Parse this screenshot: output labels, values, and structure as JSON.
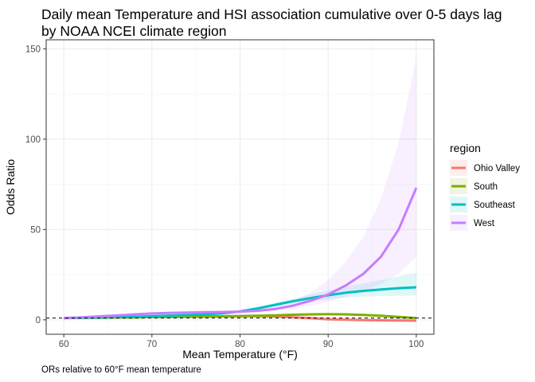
{
  "chart_data": {
    "type": "line",
    "title": "Daily mean Temperature and HSI association cumulative over 0-5 days lag by NOAA NCEI climate region",
    "xlabel": "Mean Temperature (°F)",
    "ylabel": "Odds Ratio",
    "caption": "ORs relative to 60°F mean temperature",
    "xlim": [
      58,
      102
    ],
    "ylim": [
      -8,
      155
    ],
    "x_ticks": [
      60,
      70,
      80,
      90,
      100
    ],
    "y_ticks": [
      0,
      50,
      100,
      150
    ],
    "reference_line": 1,
    "grid": true,
    "legend": {
      "title": "region",
      "position": "right"
    },
    "x": [
      60,
      62,
      64,
      66,
      68,
      70,
      72,
      74,
      76,
      78,
      80,
      82,
      84,
      86,
      88,
      90,
      92,
      94,
      96,
      98,
      100
    ],
    "series": [
      {
        "name": "Ohio Valley",
        "color": "#F8766D",
        "values": [
          1,
          1.1,
          1.2,
          1.3,
          1.4,
          1.5,
          1.6,
          1.7,
          1.8,
          1.9,
          2.0,
          2.0,
          1.8,
          1.4,
          0.9,
          0.3,
          0.0,
          -0.2,
          -0.3,
          -0.4,
          -0.5
        ],
        "lower": [
          1,
          1,
          1,
          1,
          1,
          1,
          1,
          1,
          1,
          1,
          1,
          1,
          1,
          1,
          0.8,
          0.3,
          0.0,
          -0.2,
          -0.3,
          -0.4,
          -0.5
        ],
        "upper": [
          1,
          1.2,
          1.4,
          1.6,
          1.8,
          2.0,
          2.2,
          2.4,
          2.6,
          2.8,
          3.0,
          3.0,
          2.8,
          2.5,
          2.0,
          1.5,
          1.2,
          1.0,
          0.9,
          0.8,
          0.8
        ]
      },
      {
        "name": "South",
        "color": "#7CAE00",
        "values": [
          1,
          1.1,
          1.2,
          1.3,
          1.4,
          1.5,
          1.6,
          1.7,
          1.8,
          1.9,
          2.0,
          2.2,
          2.5,
          2.8,
          3.0,
          3.1,
          3.0,
          2.7,
          2.2,
          1.6,
          1.0
        ],
        "lower": [
          1,
          1,
          1,
          1.1,
          1.2,
          1.3,
          1.4,
          1.5,
          1.6,
          1.7,
          1.8,
          2.0,
          2.2,
          2.4,
          2.5,
          2.5,
          2.3,
          2.0,
          1.6,
          1.1,
          0.6
        ],
        "upper": [
          1,
          1.2,
          1.4,
          1.5,
          1.6,
          1.7,
          1.8,
          1.9,
          2.0,
          2.1,
          2.2,
          2.4,
          2.8,
          3.2,
          3.5,
          3.7,
          3.7,
          3.4,
          2.9,
          2.2,
          1.5
        ]
      },
      {
        "name": "Southeast",
        "color": "#00BFC4",
        "values": [
          1,
          1.1,
          1.3,
          1.5,
          1.7,
          2.0,
          2.3,
          2.6,
          3.0,
          3.6,
          4.6,
          6.3,
          8.3,
          10.3,
          12.0,
          13.6,
          15.0,
          16.0,
          16.8,
          17.5,
          18.0
        ],
        "lower": [
          1,
          1,
          1.1,
          1.3,
          1.5,
          1.8,
          2.1,
          2.4,
          2.8,
          3.3,
          4.2,
          5.6,
          7.3,
          9.0,
          10.3,
          11.4,
          12.3,
          12.8,
          13.1,
          13.3,
          13.5
        ],
        "upper": [
          1,
          1.2,
          1.5,
          1.7,
          1.9,
          2.2,
          2.5,
          2.8,
          3.3,
          4.0,
          5.1,
          7.0,
          9.4,
          11.8,
          14.0,
          16.2,
          18.3,
          20.2,
          22.0,
          24.0,
          26.0
        ]
      },
      {
        "name": "West",
        "color": "#C77CFF",
        "values": [
          1,
          1.4,
          1.9,
          2.4,
          3.0,
          3.5,
          3.8,
          4.0,
          4.2,
          4.3,
          4.5,
          5.0,
          6.0,
          7.8,
          10.5,
          14.0,
          19.0,
          25.5,
          35.0,
          50.0,
          73.0
        ],
        "lower": [
          1,
          1.2,
          1.6,
          2.0,
          2.5,
          2.9,
          3.2,
          3.4,
          3.6,
          3.7,
          3.8,
          4.1,
          4.8,
          6.0,
          7.8,
          9.9,
          12.7,
          16.0,
          20.0,
          25.5,
          35.0
        ],
        "upper": [
          1,
          1.6,
          2.2,
          2.8,
          3.5,
          4.2,
          4.6,
          4.8,
          5.0,
          5.1,
          5.3,
          6.2,
          7.8,
          10.5,
          15.0,
          22.0,
          32.0,
          46.0,
          67.0,
          98.0,
          145.0
        ]
      }
    ]
  }
}
